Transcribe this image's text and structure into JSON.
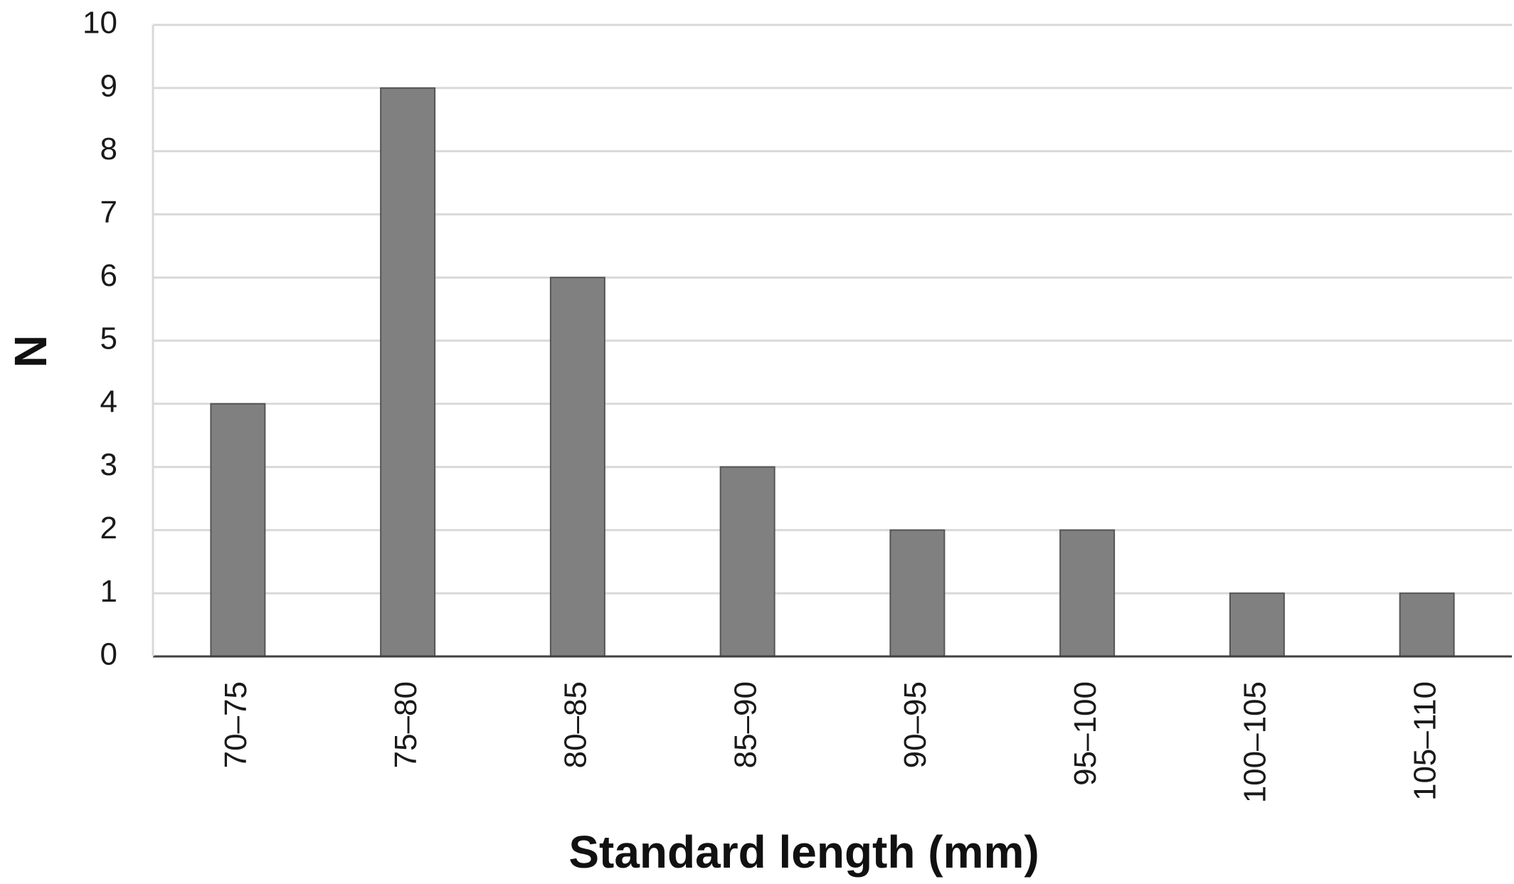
{
  "chart_data": {
    "type": "bar",
    "title": "",
    "xlabel": "Standard length (mm)",
    "ylabel": "N",
    "categories": [
      "70–75",
      "75–80",
      "80–85",
      "85–90",
      "90–95",
      "95–100",
      "100–105",
      "105–110"
    ],
    "values": [
      4,
      9,
      6,
      3,
      2,
      2,
      1,
      1
    ],
    "ylim": [
      0,
      10
    ],
    "yticks": [
      "0",
      "1",
      "2",
      "3",
      "4",
      "5",
      "6",
      "7",
      "8",
      "9",
      "10"
    ],
    "grid": true,
    "legend": "none",
    "colors": {
      "bar_fill": "#808080",
      "bar_stroke": "#555555",
      "grid": "#d9d9d9",
      "axis": "#404040"
    }
  }
}
